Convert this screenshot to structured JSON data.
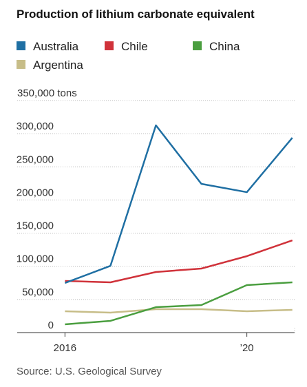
{
  "chart_data": {
    "type": "line",
    "title": "Production of lithium carbonate equivalent",
    "x": [
      2016,
      2017,
      2018,
      2019,
      2020,
      2021
    ],
    "xlim": [
      2014.95,
      2021.05
    ],
    "xticks": [
      2016,
      {
        "value": 2020,
        "label": "’20"
      }
    ],
    "ylim": [
      0,
      350000
    ],
    "yticks": [
      0,
      {
        "value": 50000,
        "label": "50,000"
      },
      {
        "value": 100000,
        "label": "100,000"
      },
      {
        "value": 150000,
        "label": "150,000"
      },
      {
        "value": 200000,
        "label": "200,000"
      },
      {
        "value": 250000,
        "label": "250,000"
      },
      {
        "value": 300000,
        "label": "300,000"
      },
      {
        "value": 350000,
        "label": "350,000 tons"
      }
    ],
    "grid": true,
    "series": [
      {
        "name": "Australia",
        "color": "#1f6fa3",
        "values": [
          74800,
          100700,
          312600,
          224300,
          211800,
          293900
        ]
      },
      {
        "name": "Chile",
        "color": "#d0323a",
        "values": [
          77900,
          75800,
          91400,
          96600,
          115300,
          139100
        ]
      },
      {
        "name": "China",
        "color": "#4a9e3f",
        "values": [
          12500,
          17700,
          38400,
          41500,
          71700,
          75800
        ]
      },
      {
        "name": "Argentina",
        "color": "#c7bd88",
        "values": [
          32200,
          30100,
          35300,
          35300,
          32200,
          34300
        ]
      }
    ],
    "source": "Source: U.S. Geological Survey"
  }
}
